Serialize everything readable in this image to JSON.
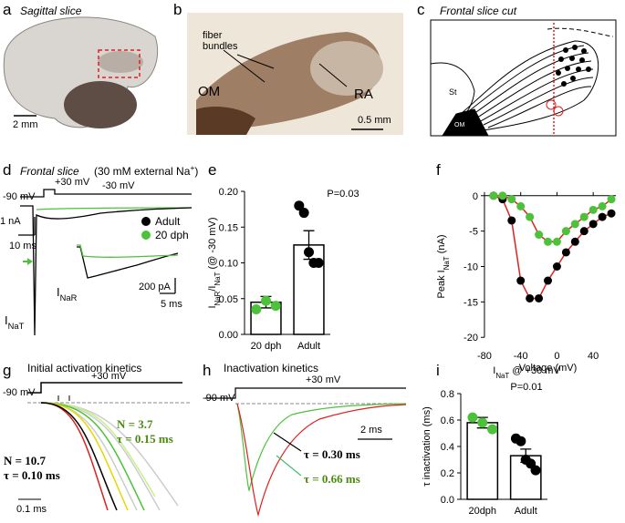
{
  "panels": {
    "a": {
      "label": "a",
      "title": "Sagittal slice",
      "scale": "2 mm"
    },
    "b": {
      "label": "b",
      "fiber": [
        "fiber",
        "bundles"
      ],
      "om": "OM",
      "ra": "RA",
      "scale": "0.5 mm"
    },
    "c": {
      "label": "c",
      "title": "Frontal slice cut",
      "st": "St",
      "om": "OM"
    },
    "d": {
      "label": "d",
      "title": "Frontal slice",
      "subtitle": [
        "(30 mM external Na",
        "+",
        ")"
      ],
      "step_hi": "+30 mV",
      "step_lo": "-90 mV",
      "step_mid": "-30 mV",
      "scale_y": "1 nA",
      "scale_x": "10 ms",
      "legend": [
        "Adult",
        "20 dph"
      ],
      "inat": [
        "I",
        "NaT"
      ],
      "inar": [
        "I",
        "NaR"
      ],
      "inset_y": "200 pA",
      "inset_x": "5 ms"
    },
    "g": {
      "label": "g",
      "title": "Initial activation kinetics",
      "step_hi": "+30 mV",
      "step_lo": "-90 mV",
      "n_adult": "N = 10.7",
      "tau_adult": "τ = 0.10 ms",
      "n_young": "N = 3.7",
      "tau_young": "τ = 0.15 ms",
      "scale_x": "0.1 ms"
    },
    "h": {
      "label": "h",
      "title": "Inactivation kinetics",
      "step_hi": "+30 mV",
      "step_lo": "-90 mV",
      "scale_x": "2 ms",
      "tau_adult": "τ = 0.30 ms",
      "tau_young": "τ = 0.66 ms"
    }
  },
  "chart_data": [
    {
      "type": "bar",
      "panel": "e",
      "annotation": "P=0.03",
      "ylabel": [
        "I",
        "NaR",
        "/I",
        "NaT",
        " (@ -30 mV)"
      ],
      "categories": [
        "20 dph",
        "Adult"
      ],
      "values": [
        0.045,
        0.125
      ],
      "errors": [
        0.008,
        0.02
      ],
      "points": [
        [
          0.035,
          0.047,
          0.04
        ],
        [
          0.18,
          0.17,
          0.115,
          0.1,
          0.1
        ]
      ],
      "point_colors": [
        "#4cc23a",
        "#000000"
      ],
      "ylim": [
        0,
        0.2
      ],
      "yticks": [
        {
          "value": 0,
          "label": "0.00"
        },
        0.05,
        {
          "value": 0.1,
          "label": "0.10"
        },
        0.15,
        {
          "value": 0.2,
          "label": "0.20"
        }
      ]
    },
    {
      "type": "line",
      "panel": "f",
      "xlabel": "Voltage (mV)",
      "ylabel": [
        "Peak I",
        "NaT",
        " (nA)"
      ],
      "x": [
        -70,
        -60,
        -50,
        -40,
        -30,
        -20,
        -10,
        0,
        10,
        20,
        30,
        40,
        50,
        60
      ],
      "series": [
        {
          "color": "#000000",
          "values": [
            0,
            -0.5,
            -3.5,
            -12,
            -14.5,
            -14.5,
            -12,
            -10,
            -8,
            -6.5,
            -5,
            -4,
            -3,
            -2.5
          ]
        },
        {
          "color": "#4cc23a",
          "values": [
            0,
            0,
            -0.5,
            -1.5,
            -3,
            -5.5,
            -6.5,
            -6.5,
            -5,
            -4,
            -3,
            -2,
            -1.5,
            -0.5
          ]
        }
      ],
      "line_color": "#e02020",
      "xlim": [
        -85,
        65
      ],
      "xticks": [
        -80,
        -40,
        0,
        40
      ],
      "ylim": [
        -21,
        1
      ],
      "yticks": [
        0,
        -5,
        -10,
        -15,
        -20
      ]
    },
    {
      "type": "bar",
      "panel": "i",
      "title": [
        "I",
        "NaT",
        " @ +30 mV"
      ],
      "annotation": "P=0.01",
      "ylabel": "τ inactivation (ms)",
      "categories": [
        "20dph",
        "Adult"
      ],
      "values": [
        0.58,
        0.33
      ],
      "errors": [
        0.04,
        0.05
      ],
      "points": [
        [
          0.62,
          0.58,
          0.53
        ],
        [
          0.46,
          0.44,
          0.3,
          0.27,
          0.22
        ]
      ],
      "point_colors": [
        "#4cc23a",
        "#000000"
      ],
      "ylim": [
        0,
        0.8
      ],
      "yticks": [
        {
          "value": 0,
          "label": "0.0"
        },
        0.2,
        0.4,
        0.6,
        0.8
      ]
    }
  ]
}
